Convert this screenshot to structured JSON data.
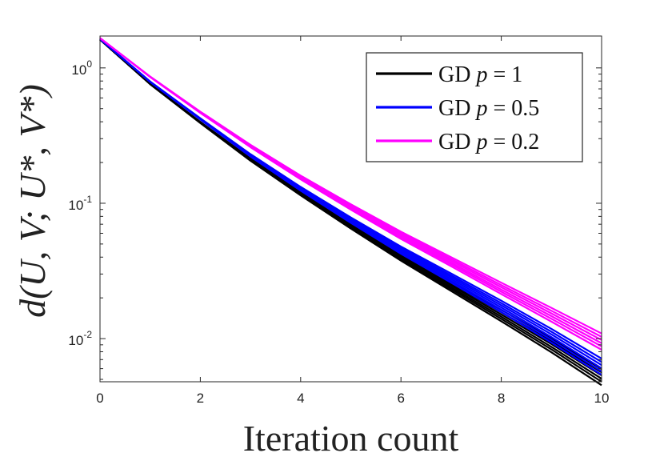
{
  "chart_data": {
    "type": "line",
    "title": "",
    "xlabel": "Iteration count",
    "ylabel": "d(U, V; U*, V*)",
    "xlim": [
      0,
      10
    ],
    "ylim": [
      0.005,
      1.6
    ],
    "yscale": "log",
    "grid": false,
    "legend_position": "top-right",
    "x_ticks": [
      "0",
      "2",
      "4",
      "6",
      "8",
      "10"
    ],
    "y_ticks": [
      {
        "value": 1,
        "base": "10",
        "exp": "0"
      },
      {
        "value": 0.1,
        "base": "10",
        "exp": "-1"
      },
      {
        "value": 0.01,
        "base": "10",
        "exp": "-2"
      }
    ],
    "x": [
      0,
      1,
      2,
      3,
      4,
      5,
      6,
      7,
      8,
      9,
      10
    ],
    "series": [
      {
        "name": "GD p = 1",
        "legend_prefix": "GD ",
        "legend_var": "p",
        "legend_value": " = 1",
        "color": "#000000",
        "values": [
          1.62,
          0.76,
          0.395,
          0.21,
          0.118,
          0.068,
          0.04,
          0.0243,
          0.0148,
          0.0089,
          0.0052
        ]
      },
      {
        "name": "GD p = 0.5",
        "legend_prefix": "GD ",
        "legend_var": "p",
        "legend_value": " = 0.5",
        "color": "#0000ff",
        "values": [
          1.63,
          0.79,
          0.42,
          0.226,
          0.128,
          0.075,
          0.045,
          0.028,
          0.0173,
          0.0105,
          0.0062
        ]
      },
      {
        "name": "GD p = 0.2",
        "legend_prefix": "GD ",
        "legend_var": "p",
        "legend_value": " = 0.2",
        "color": "#ff00ff",
        "values": [
          1.66,
          0.86,
          0.47,
          0.265,
          0.155,
          0.094,
          0.058,
          0.037,
          0.0235,
          0.015,
          0.0095
        ]
      }
    ]
  }
}
